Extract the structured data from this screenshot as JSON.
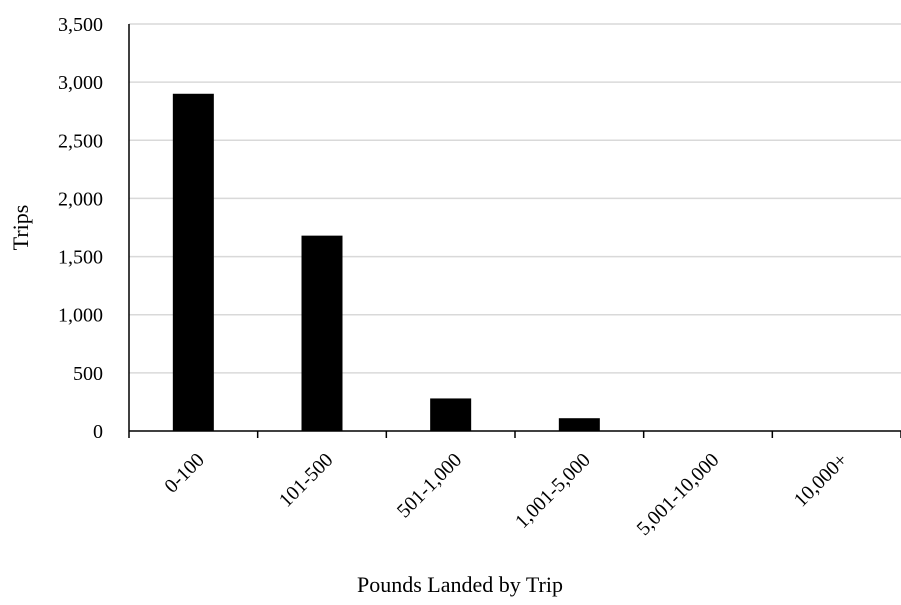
{
  "chart_data": {
    "type": "bar",
    "title": "",
    "xlabel": "Pounds Landed by Trip",
    "ylabel": "Trips",
    "categories": [
      "0-100",
      "101-500",
      "501-1,000",
      "1,001-5,000",
      "5,001-10,000",
      "10,000+"
    ],
    "values": [
      2900,
      1680,
      280,
      110,
      0,
      0
    ],
    "ylim": [
      0,
      3500
    ],
    "yticks": [
      0,
      500,
      1000,
      1500,
      2000,
      2500,
      3000,
      3500
    ],
    "ytick_labels": [
      "0",
      "500",
      "1,000",
      "1,500",
      "2,000",
      "2,500",
      "3,000",
      "3,500"
    ],
    "grid": true,
    "legend": "none",
    "bar_color": "#000000",
    "grid_color": "#d9d9d9"
  }
}
